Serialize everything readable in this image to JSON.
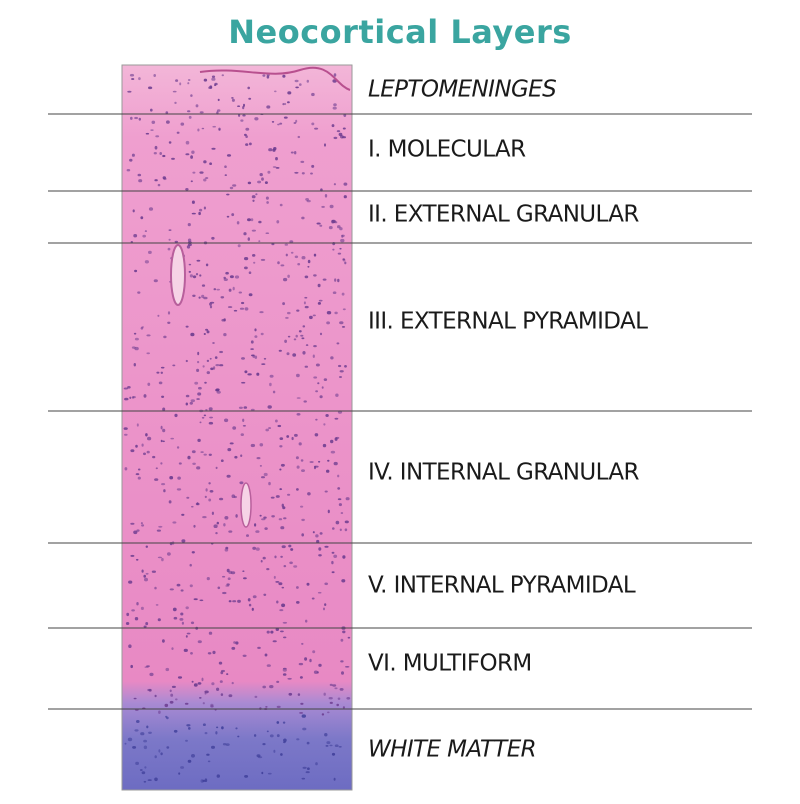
{
  "title": "Neocortical Layers",
  "layers": [
    {
      "label": "LEPTOMENINGES"
    },
    {
      "label": "I. MOLECULAR"
    },
    {
      "label": "II. EXTERNAL GRANULAR"
    },
    {
      "label": "III. EXTERNAL PYRAMIDAL"
    },
    {
      "label": "IV. INTERNAL GRANULAR"
    },
    {
      "label": "V. INTERNAL PYRAMIDAL"
    },
    {
      "label": "VI. MULTIFORM"
    },
    {
      "label": "WHITE MATTER"
    }
  ]
}
